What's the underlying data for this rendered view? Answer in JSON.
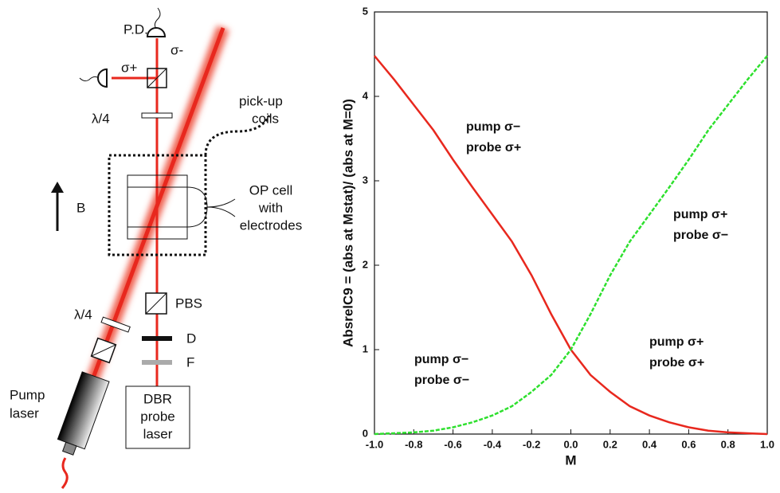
{
  "diagram": {
    "pd": "P.D.",
    "sigma_minus": "σ-",
    "sigma_plus": "σ+",
    "lambda_top": "λ/4",
    "lambda_pump": "λ/4",
    "pickup": [
      "pick-up",
      "coils"
    ],
    "field": "B",
    "cell": [
      "OP cell",
      "with",
      "electrodes"
    ],
    "pbs": "PBS",
    "d": "D",
    "f": "F",
    "pump_laser": [
      "Pump",
      "laser"
    ],
    "probe_laser": [
      "DBR",
      "probe",
      "laser"
    ]
  },
  "chart_data": {
    "type": "line",
    "x_label": "M",
    "y_label": "AbsrelC9 = (abs at Mstat)/ (abs at M=0)",
    "x": [
      -1,
      -0.9,
      -0.8,
      -0.7,
      -0.6,
      -0.5,
      -0.4,
      -0.3,
      -0.2,
      -0.1,
      0,
      0.1,
      0.2,
      0.3,
      0.4,
      0.5,
      0.6,
      0.7,
      0.8,
      0.9,
      1
    ],
    "series": [
      {
        "color": "#e8281e",
        "dashed": false,
        "values": [
          4.48,
          4.2,
          3.9,
          3.6,
          3.25,
          2.92,
          2.6,
          2.28,
          1.88,
          1.42,
          1.0,
          0.7,
          0.5,
          0.33,
          0.22,
          0.14,
          0.08,
          0.04,
          0.02,
          0.01,
          0.0
        ]
      },
      {
        "color": "#2ee02e",
        "dashed": true,
        "values": [
          0.0,
          0.01,
          0.02,
          0.04,
          0.08,
          0.14,
          0.22,
          0.33,
          0.5,
          0.7,
          1.0,
          1.42,
          1.88,
          2.28,
          2.6,
          2.92,
          3.25,
          3.6,
          3.9,
          4.2,
          4.48
        ]
      }
    ],
    "annotations": [
      [
        "pump σ−",
        "probe σ+"
      ],
      [
        "pump σ+",
        "probe σ−"
      ],
      [
        "pump σ−",
        "probe σ−"
      ],
      [
        "pump σ+",
        "probe σ+"
      ]
    ],
    "xlim": [
      -1,
      1
    ],
    "ylim": [
      0,
      5
    ],
    "xticks": [
      {
        "value": -1,
        "label": "-1.0"
      },
      {
        "value": -0.8,
        "label": "-0.8"
      },
      {
        "value": -0.6,
        "label": "-0.6"
      },
      {
        "value": -0.4,
        "label": "-0.4"
      },
      {
        "value": -0.2,
        "label": "-0.2"
      },
      {
        "value": 0,
        "label": "0.0"
      },
      {
        "value": 0.2,
        "label": "0.2"
      },
      {
        "value": 0.4,
        "label": "0.4"
      },
      {
        "value": 0.6,
        "label": "0.6"
      },
      {
        "value": 0.8,
        "label": "0.8"
      },
      {
        "value": 1,
        "label": "1.0"
      }
    ],
    "yticks": [
      0,
      1,
      2,
      3,
      4,
      5
    ]
  }
}
